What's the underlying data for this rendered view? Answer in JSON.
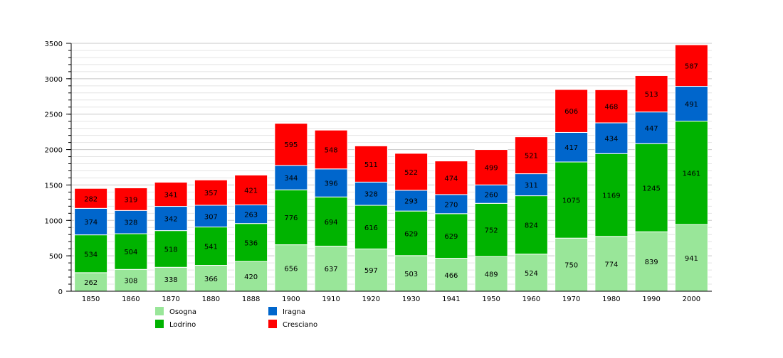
{
  "chart_data": {
    "type": "bar",
    "stacked": true,
    "title": "",
    "xlabel": "",
    "ylabel": "",
    "ylim": [
      0,
      3500
    ],
    "yticks": [
      0,
      500,
      1000,
      1500,
      2000,
      2500,
      3000,
      3500
    ],
    "grid": true,
    "legend_position": "bottom",
    "categories": [
      "1850",
      "1860",
      "1870",
      "1880",
      "1888",
      "1900",
      "1910",
      "1920",
      "1930",
      "1941",
      "1950",
      "1960",
      "1970",
      "1980",
      "1990",
      "2000"
    ],
    "series": [
      {
        "name": "Osogna",
        "color": "#99e699",
        "values": [
          262,
          308,
          338,
          366,
          420,
          656,
          637,
          597,
          503,
          466,
          489,
          524,
          750,
          774,
          839,
          941
        ]
      },
      {
        "name": "Lodrino",
        "color": "#00b300",
        "values": [
          534,
          504,
          518,
          541,
          536,
          776,
          694,
          616,
          629,
          629,
          752,
          824,
          1075,
          1169,
          1245,
          1461
        ]
      },
      {
        "name": "Iragna",
        "color": "#0066cc",
        "values": [
          374,
          328,
          342,
          307,
          263,
          344,
          396,
          328,
          293,
          270,
          260,
          311,
          417,
          434,
          447,
          491
        ]
      },
      {
        "name": "Cresciano",
        "color": "#ff0000",
        "values": [
          282,
          319,
          341,
          357,
          421,
          595,
          548,
          511,
          522,
          474,
          499,
          521,
          606,
          468,
          513,
          587
        ]
      }
    ]
  }
}
